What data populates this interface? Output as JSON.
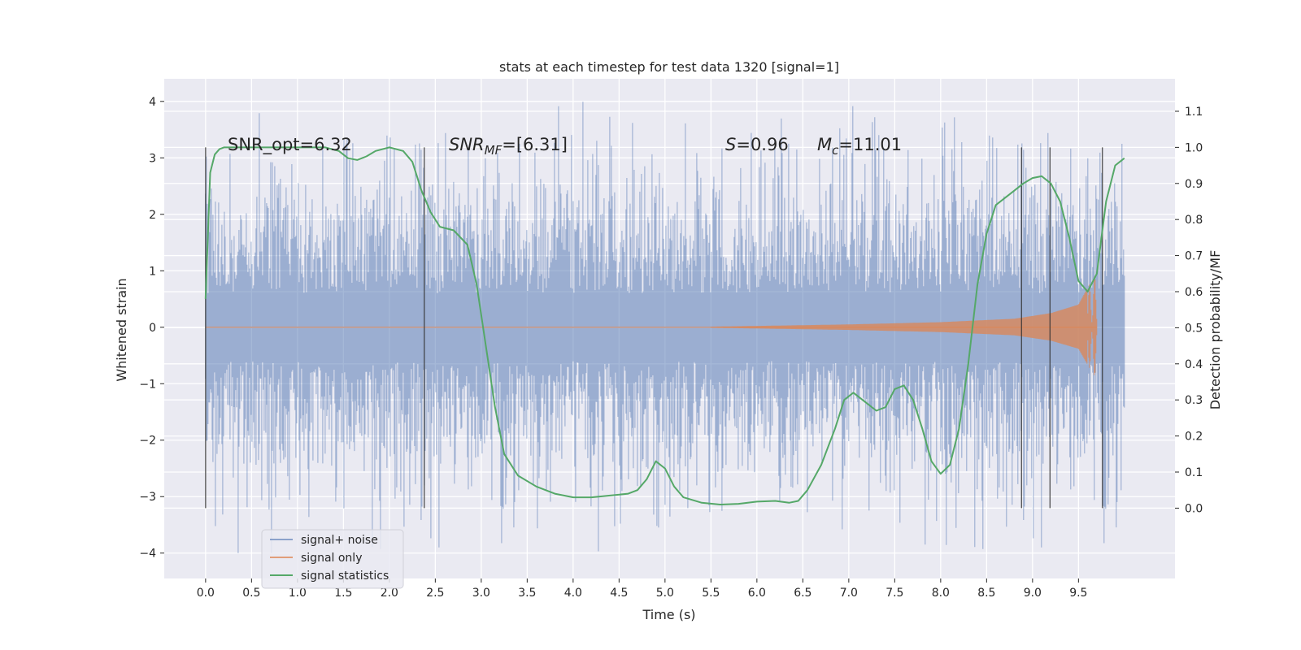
{
  "chart_data": {
    "type": "line",
    "title": "stats at each timestep for test data 1320 [signal=1]",
    "xlabel": "Time (s)",
    "ylabel_left": "Whitened strain",
    "ylabel_right": "Detection probability/MF",
    "xlim": [
      -0.45,
      10.55
    ],
    "ylim_left": [
      -4.45,
      4.4
    ],
    "ylim_right": [
      -0.195,
      1.19
    ],
    "x_ticks": [
      "0.0",
      "0.5",
      "1.0",
      "1.5",
      "2.0",
      "2.5",
      "3.0",
      "3.5",
      "4.0",
      "4.5",
      "5.0",
      "5.5",
      "6.0",
      "6.5",
      "7.0",
      "7.5",
      "8.0",
      "8.5",
      "9.0",
      "9.5"
    ],
    "y_ticks_left": [
      "−4",
      "−3",
      "−2",
      "−1",
      "0",
      "1",
      "2",
      "3",
      "4"
    ],
    "y_ticks_right": [
      "0.0",
      "0.1",
      "0.2",
      "0.3",
      "0.4",
      "0.5",
      "0.6",
      "0.7",
      "0.8",
      "0.9",
      "1.0",
      "1.1"
    ],
    "grid": true,
    "legend_position": "lower-left",
    "annotations": {
      "snr_opt": "SNR_opt=6.32",
      "snr_mf_sym": "SNR",
      "snr_mf_sub": "MF",
      "snr_mf_rest": "=[6.31]",
      "s_sym": "S",
      "s_rest": "=0.96",
      "mc_sym": "M",
      "mc_sub": "c",
      "mc_rest": "=11.01"
    },
    "colors": {
      "background": "#eaeaf2",
      "grid": "#ffffff",
      "noise": "#4c72b0",
      "signal": "#dd8452",
      "stats": "#55a868",
      "vlines": "#333333"
    },
    "vertical_lines_x": [
      0.0,
      2.38,
      8.88,
      9.19,
      9.76
    ],
    "vertical_lines_yrange_right": [
      0.0,
      1.0
    ],
    "series": [
      {
        "name": "signal+ noise",
        "axis": "left",
        "style": "noise",
        "x_range": [
          0.0,
          10.0
        ],
        "typical_abs": 1.3,
        "peak_abs": 4.0
      },
      {
        "name": "signal only",
        "axis": "left",
        "style": "chirp",
        "x_range": [
          0.0,
          9.7
        ],
        "envelope": [
          [
            5.5,
            0.01
          ],
          [
            7.0,
            0.05
          ],
          [
            8.0,
            0.09
          ],
          [
            8.8,
            0.15
          ],
          [
            9.2,
            0.25
          ],
          [
            9.5,
            0.4
          ],
          [
            9.7,
            1.0
          ]
        ]
      },
      {
        "name": "signal statistics",
        "axis": "right",
        "style": "line",
        "x": [
          0.0,
          0.05,
          0.1,
          0.15,
          0.2,
          0.3,
          0.5,
          0.8,
          1.0,
          1.3,
          1.45,
          1.55,
          1.65,
          1.75,
          1.85,
          2.0,
          2.15,
          2.25,
          2.35,
          2.45,
          2.55,
          2.7,
          2.85,
          2.95,
          3.05,
          3.15,
          3.25,
          3.4,
          3.6,
          3.8,
          4.0,
          4.2,
          4.4,
          4.6,
          4.7,
          4.8,
          4.9,
          5.0,
          5.1,
          5.2,
          5.4,
          5.6,
          5.8,
          6.0,
          6.2,
          6.35,
          6.45,
          6.55,
          6.7,
          6.85,
          6.95,
          7.05,
          7.15,
          7.3,
          7.4,
          7.5,
          7.6,
          7.7,
          7.8,
          7.9,
          8.0,
          8.1,
          8.2,
          8.3,
          8.4,
          8.5,
          8.6,
          8.8,
          8.9,
          9.0,
          9.1,
          9.2,
          9.3,
          9.4,
          9.5,
          9.6,
          9.7,
          9.8,
          9.9,
          10.0
        ],
        "y": [
          0.58,
          0.93,
          0.98,
          0.995,
          1.0,
          1.0,
          1.0,
          1.0,
          1.0,
          1.0,
          0.99,
          0.97,
          0.965,
          0.975,
          0.99,
          1.0,
          0.99,
          0.96,
          0.88,
          0.82,
          0.78,
          0.77,
          0.73,
          0.62,
          0.45,
          0.28,
          0.15,
          0.09,
          0.06,
          0.04,
          0.03,
          0.03,
          0.035,
          0.04,
          0.05,
          0.08,
          0.13,
          0.11,
          0.06,
          0.03,
          0.015,
          0.01,
          0.012,
          0.018,
          0.02,
          0.015,
          0.02,
          0.05,
          0.12,
          0.22,
          0.3,
          0.32,
          0.3,
          0.27,
          0.28,
          0.33,
          0.34,
          0.3,
          0.22,
          0.13,
          0.095,
          0.12,
          0.22,
          0.4,
          0.62,
          0.76,
          0.84,
          0.88,
          0.9,
          0.915,
          0.92,
          0.9,
          0.85,
          0.75,
          0.63,
          0.6,
          0.65,
          0.85,
          0.95,
          0.97
        ]
      }
    ]
  }
}
